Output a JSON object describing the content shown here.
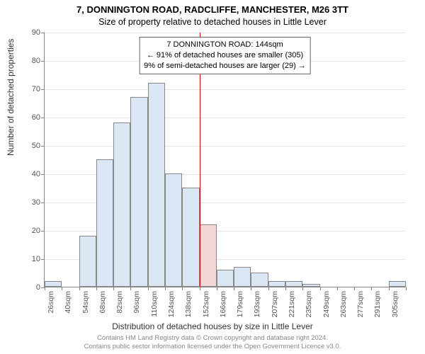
{
  "title": "7, DONNINGTON ROAD, RADCLIFFE, MANCHESTER, M26 3TT",
  "subtitle": "Size of property relative to detached houses in Little Lever",
  "y_axis": {
    "label": "Number of detached properties",
    "min": 0,
    "max": 90,
    "step": 10,
    "label_fontsize": 12,
    "tick_fontsize": 11
  },
  "x_axis": {
    "label": "Distribution of detached houses by size in Little Lever",
    "label_fontsize": 12,
    "tick_fontsize": 10.5
  },
  "chart": {
    "type": "histogram",
    "bar_fill": "#dbe7f5",
    "bar_stroke": "#888888",
    "grid_color": "#e5e5e5",
    "background": "#ffffff",
    "bins": [
      {
        "label": "26sqm",
        "value": 2
      },
      {
        "label": "40sqm",
        "value": 0
      },
      {
        "label": "54sqm",
        "value": 18
      },
      {
        "label": "68sqm",
        "value": 45
      },
      {
        "label": "82sqm",
        "value": 58
      },
      {
        "label": "96sqm",
        "value": 67
      },
      {
        "label": "110sqm",
        "value": 72
      },
      {
        "label": "124sqm",
        "value": 40
      },
      {
        "label": "138sqm",
        "value": 35
      },
      {
        "label": "152sqm",
        "value": 22
      },
      {
        "label": "166sqm",
        "value": 6
      },
      {
        "label": "179sqm",
        "value": 7
      },
      {
        "label": "193sqm",
        "value": 5
      },
      {
        "label": "207sqm",
        "value": 2
      },
      {
        "label": "221sqm",
        "value": 2
      },
      {
        "label": "235sqm",
        "value": 1
      },
      {
        "label": "249sqm",
        "value": 0
      },
      {
        "label": "263sqm",
        "value": 0
      },
      {
        "label": "277sqm",
        "value": 0
      },
      {
        "label": "291sqm",
        "value": 0
      },
      {
        "label": "305sqm",
        "value": 2
      }
    ],
    "marker": {
      "bin_index": 9,
      "fraction_into_bin": 0.0,
      "color": "#cc0000"
    },
    "highlight_fill": "#f5d6d6"
  },
  "annotation": {
    "line1": "7 DONNINGTON ROAD: 144sqm",
    "line2": "← 91% of detached houses are smaller (305)",
    "line3": "9% of semi-detached houses are larger (29) →",
    "border_color": "#666666",
    "background": "#ffffff",
    "fontsize": 11
  },
  "footer": {
    "line1": "Contains HM Land Registry data © Crown copyright and database right 2024.",
    "line2": "Contains public sector information licensed under the Open Government Licence v3.0.",
    "fontsize": 9.5,
    "color": "#888888"
  }
}
